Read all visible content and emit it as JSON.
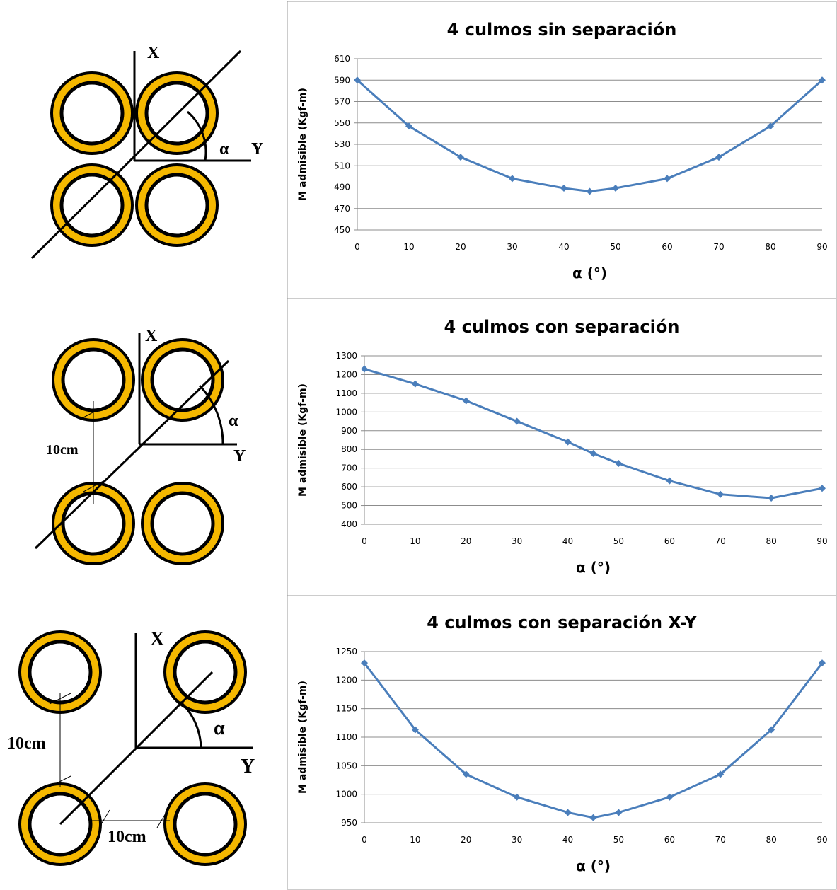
{
  "chart_data": [
    {
      "type": "line",
      "title": "4 culmos sin separación",
      "x_label": "α (°)",
      "y_label": "M admisible (Kgf-m)",
      "x": [
        0,
        10,
        20,
        30,
        40,
        45,
        50,
        60,
        70,
        80,
        90
      ],
      "values": [
        590,
        547,
        518,
        498,
        489,
        486,
        489,
        498,
        518,
        547,
        590
      ],
      "color": "#4a7ebb",
      "xlim": [
        0,
        90
      ],
      "xticks": [
        0,
        10,
        20,
        30,
        40,
        50,
        60,
        70,
        80,
        90
      ],
      "ylim": [
        450,
        610
      ],
      "yticks": [
        450,
        470,
        490,
        510,
        530,
        550,
        570,
        590,
        610
      ],
      "grid": true
    },
    {
      "type": "line",
      "title": "4 culmos con separación",
      "x_label": "α (°)",
      "y_label": "M admisible (Kgf-m)",
      "x": [
        0,
        10,
        20,
        30,
        40,
        45,
        50,
        60,
        70,
        80,
        90
      ],
      "values": [
        1230,
        1150,
        1060,
        950,
        840,
        778,
        725,
        632,
        560,
        540,
        592
      ],
      "color": "#4a7ebb",
      "xlim": [
        0,
        90
      ],
      "xticks": [
        0,
        10,
        20,
        30,
        40,
        50,
        60,
        70,
        80,
        90
      ],
      "ylim": [
        400,
        1300
      ],
      "yticks": [
        400,
        500,
        600,
        700,
        800,
        900,
        1000,
        1100,
        1200,
        1300
      ],
      "grid": true
    },
    {
      "type": "line",
      "title": "4 culmos con separación X-Y",
      "x_label": "α (°)",
      "y_label": "M admisible (Kgf-m)",
      "x": [
        0,
        10,
        20,
        30,
        40,
        45,
        50,
        60,
        70,
        80,
        90
      ],
      "values": [
        1230,
        1113,
        1035,
        995,
        968,
        959,
        968,
        995,
        1035,
        1113,
        1230
      ],
      "color": "#4a7ebb",
      "xlim": [
        0,
        90
      ],
      "xticks": [
        0,
        10,
        20,
        30,
        40,
        50,
        60,
        70,
        80,
        90
      ],
      "ylim": [
        950,
        1250
      ],
      "yticks": [
        950,
        1000,
        1050,
        1100,
        1150,
        1200,
        1250
      ],
      "grid": true
    }
  ],
  "diagrams": [
    {
      "labels": [
        "X",
        "α",
        "Y"
      ]
    },
    {
      "labels": [
        "X",
        "α",
        "Y",
        "10cm"
      ]
    },
    {
      "labels": [
        "X",
        "α",
        "Y",
        "10cm",
        "10cm"
      ]
    }
  ]
}
